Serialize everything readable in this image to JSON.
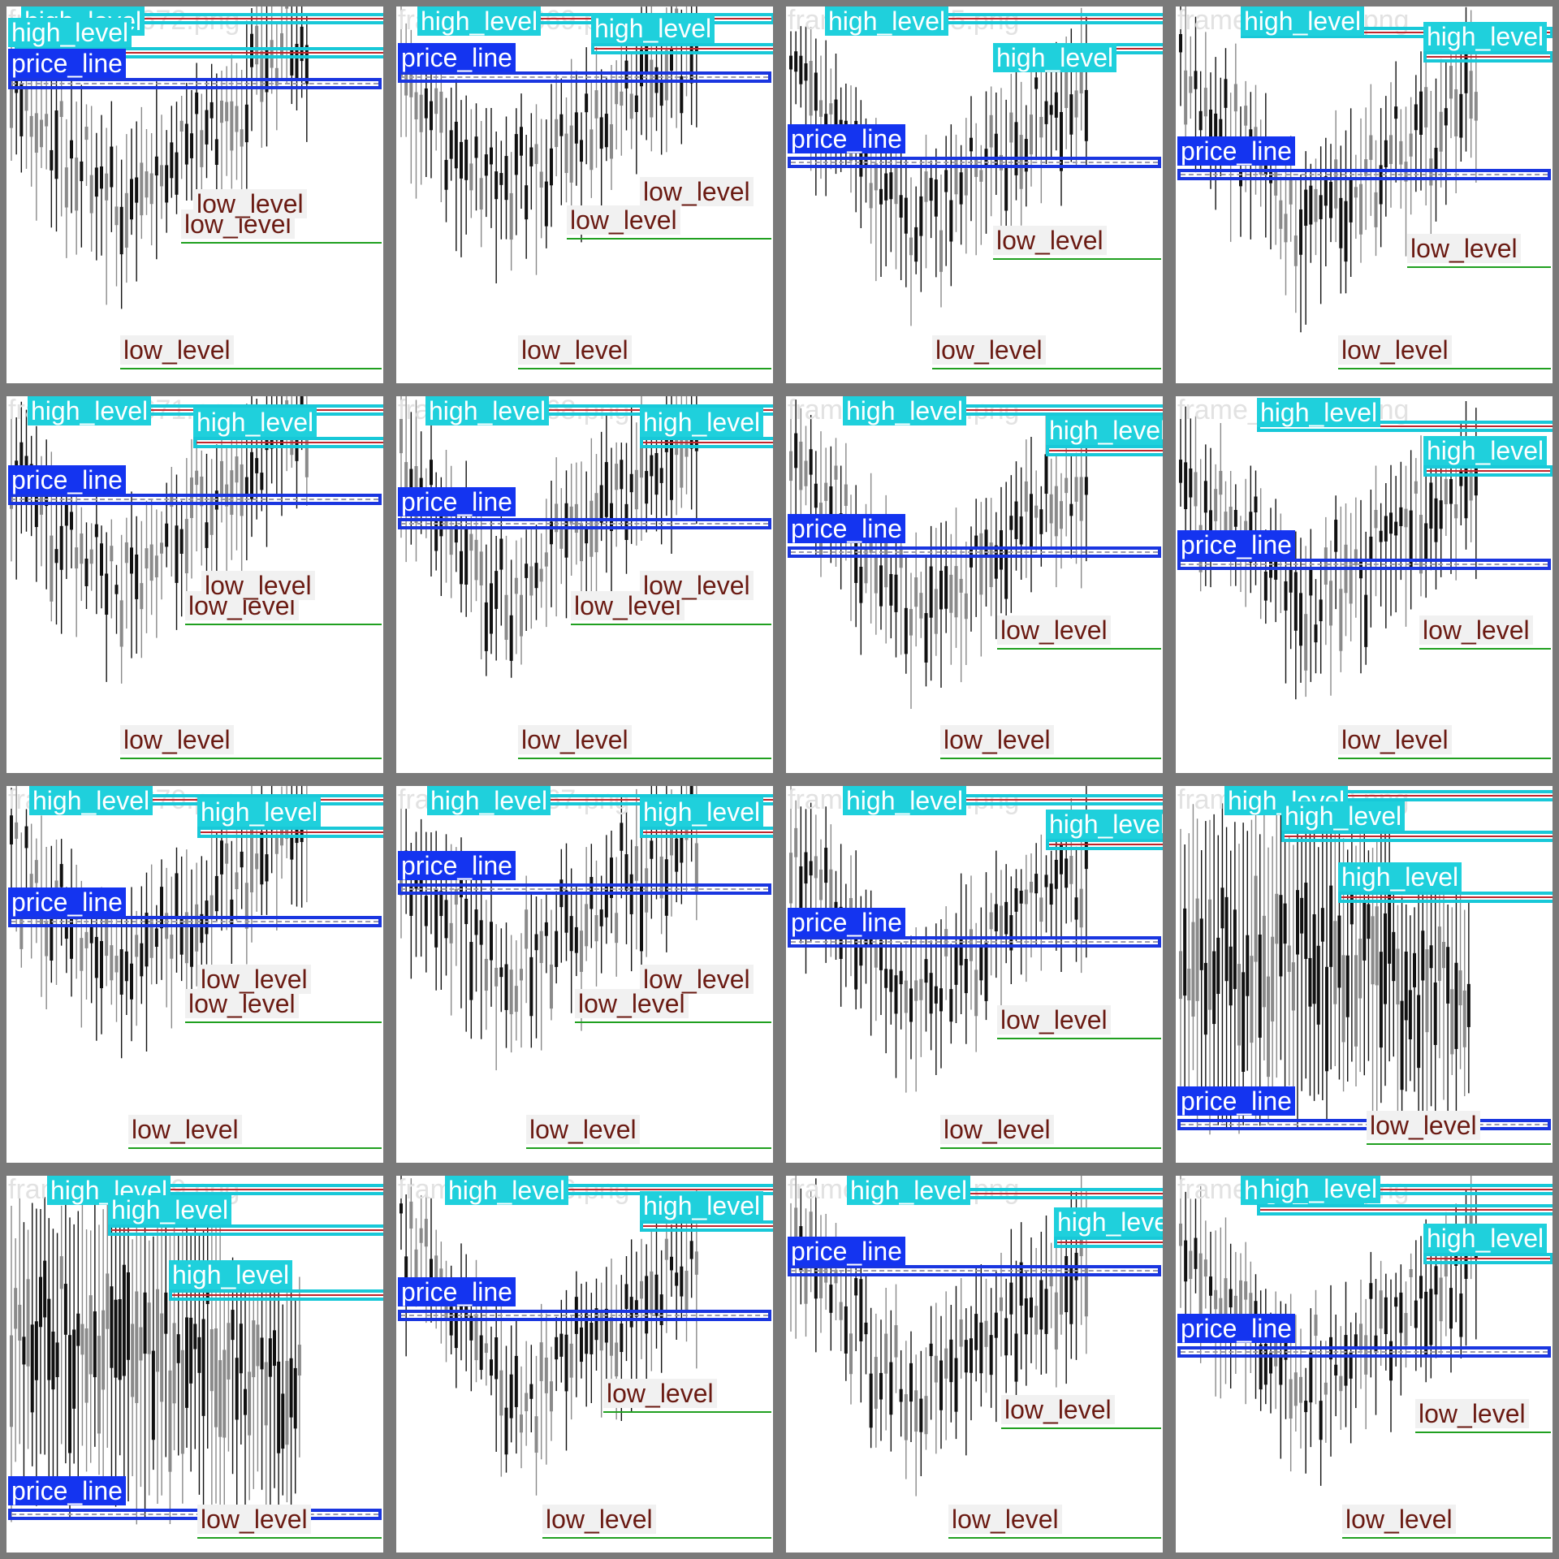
{
  "labels": {
    "high": "high_level",
    "price": "price_line",
    "low": "low_level"
  },
  "colors": {
    "background": "#7a7a7a",
    "high_level_box": "#1fd0dc",
    "price_line_box": "#1434f0",
    "low_level_text": "#6a1a12",
    "resistance_line": "#c0262c",
    "support_line": "#20a020",
    "candle_bull": "#8a8a8a",
    "candle_bear": "#111111"
  },
  "tiles": [
    {
      "filename": "frame_227672.png"
    },
    {
      "filename": "frame_227669.png"
    },
    {
      "filename": "frame_227665.png"
    },
    {
      "filename": "frame_227661.png"
    },
    {
      "filename": "frame_227671.png"
    },
    {
      "filename": "frame_227668.png"
    },
    {
      "filename": "frame_227664.png"
    },
    {
      "filename": "frame_227662.png"
    },
    {
      "filename": "frame_227670.png"
    },
    {
      "filename": "frame_227667.png"
    },
    {
      "filename": "frame_227663.png"
    },
    {
      "filename": "frame_227660.png"
    },
    {
      "filename": "frame_227659.png"
    },
    {
      "filename": "frame_227666.png"
    },
    {
      "filename": "frame_227658.png"
    },
    {
      "filename": "frame_227657.png"
    }
  ]
}
